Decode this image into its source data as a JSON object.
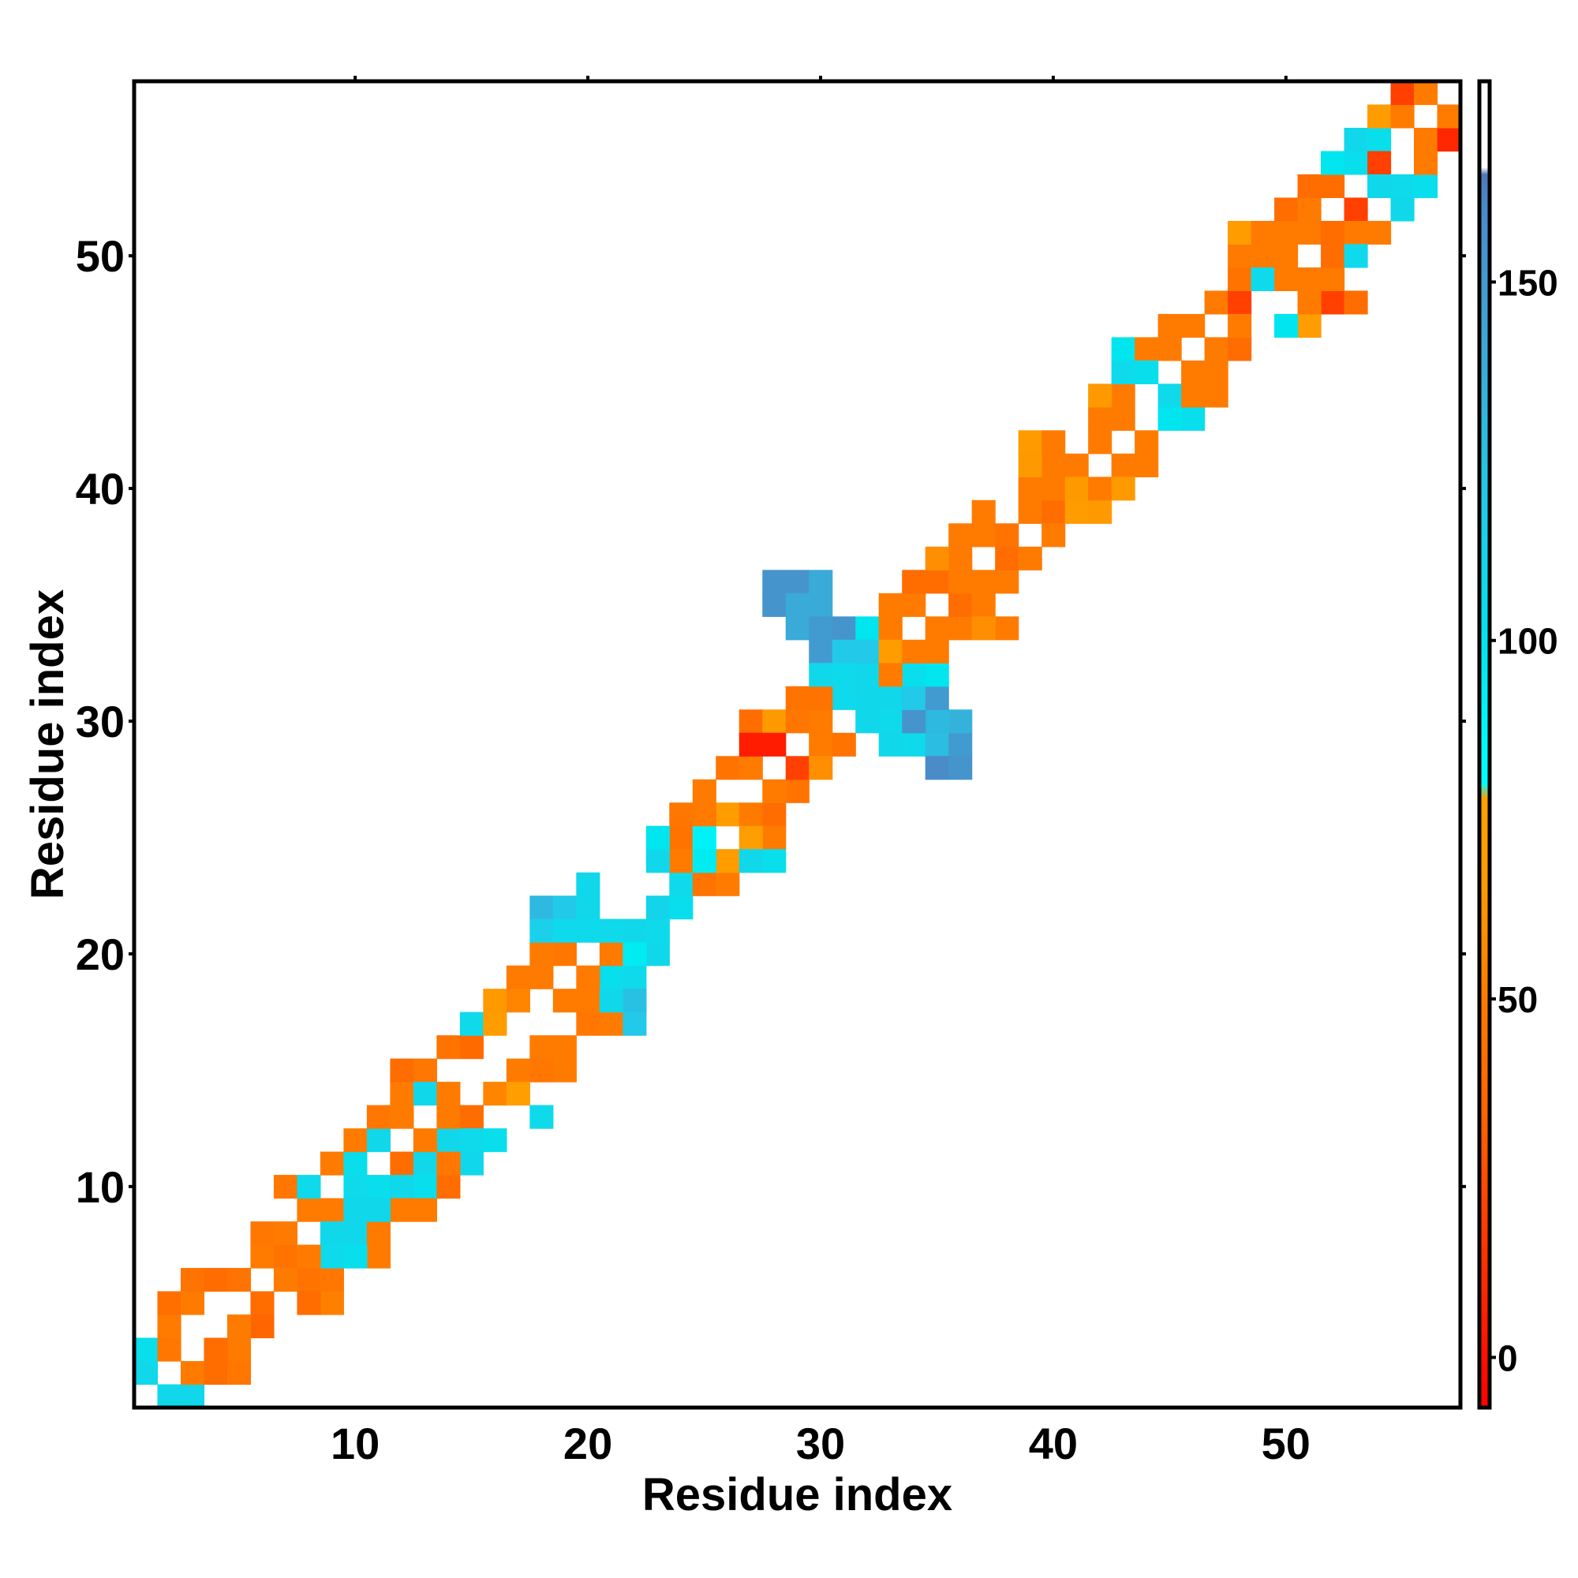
{
  "chart_data": {
    "type": "heatmap",
    "title": "",
    "xlabel": "Residue index",
    "ylabel": "Residue index",
    "xlim": [
      0.5,
      57.5
    ],
    "ylim": [
      0.5,
      57.5
    ],
    "x_ticks": [
      10,
      20,
      30,
      40,
      50
    ],
    "y_ticks": [
      10,
      20,
      30,
      40,
      50
    ],
    "x_tick_labels": [
      "10",
      "20",
      "30",
      "40",
      "50"
    ],
    "y_tick_labels": [
      "10",
      "20",
      "30",
      "40",
      "50"
    ],
    "grid": false,
    "colorbar": {
      "range": [
        -7,
        178
      ],
      "ticks": [
        0,
        50,
        100,
        150
      ],
      "tick_labels": [
        "0",
        "50",
        "100",
        "150"
      ],
      "stops": [
        {
          "value": -7,
          "color": "#ff0000"
        },
        {
          "value": 15,
          "color": "#ff3300"
        },
        {
          "value": 35,
          "color": "#ff6600"
        },
        {
          "value": 48,
          "color": "#ff7700"
        },
        {
          "value": 65,
          "color": "#ff9900"
        },
        {
          "value": 78,
          "color": "#ffa000"
        },
        {
          "value": 80,
          "color": "#00ffff"
        },
        {
          "value": 100,
          "color": "#00e5ee"
        },
        {
          "value": 120,
          "color": "#22c9e8"
        },
        {
          "value": 140,
          "color": "#3aaad8"
        },
        {
          "value": 160,
          "color": "#4a8cc8"
        },
        {
          "value": 165,
          "color": "#4f78b8"
        },
        {
          "value": 166,
          "color": "#ffffff"
        },
        {
          "value": 178,
          "color": "#ffffff"
        }
      ]
    },
    "cells": [
      [
        1,
        3,
        105
      ],
      [
        1,
        2,
        110
      ],
      [
        2,
        1,
        110
      ],
      [
        3,
        1,
        110
      ],
      [
        2,
        3,
        48
      ],
      [
        3,
        2,
        50
      ],
      [
        2,
        4,
        50
      ],
      [
        2,
        5,
        42
      ],
      [
        3,
        5,
        50
      ],
      [
        3,
        6,
        45
      ],
      [
        4,
        6,
        40
      ],
      [
        5,
        6,
        45
      ],
      [
        6,
        5,
        40
      ],
      [
        6,
        4,
        35
      ],
      [
        5,
        4,
        50
      ],
      [
        5,
        3,
        50
      ],
      [
        4,
        3,
        40
      ],
      [
        4,
        2,
        40
      ],
      [
        5,
        2,
        48
      ],
      [
        6,
        7,
        50
      ],
      [
        7,
        7,
        45
      ],
      [
        6,
        8,
        48
      ],
      [
        7,
        8,
        50
      ],
      [
        8,
        6,
        45
      ],
      [
        9,
        6,
        48
      ],
      [
        9,
        5,
        52
      ],
      [
        8,
        5,
        40
      ],
      [
        7,
        6,
        50
      ],
      [
        8,
        9,
        50
      ],
      [
        7,
        10,
        48
      ],
      [
        8,
        10,
        108
      ],
      [
        9,
        9,
        50
      ],
      [
        9,
        11,
        50
      ],
      [
        10,
        11,
        105
      ],
      [
        10,
        10,
        108
      ],
      [
        11,
        10,
        105
      ],
      [
        10,
        9,
        110
      ],
      [
        10,
        8,
        110
      ],
      [
        11,
        8,
        50
      ],
      [
        9,
        8,
        110
      ],
      [
        9,
        7,
        108
      ],
      [
        8,
        7,
        50
      ],
      [
        10,
        12,
        50
      ],
      [
        11,
        12,
        110
      ],
      [
        11,
        13,
        48
      ],
      [
        12,
        13,
        50
      ],
      [
        12,
        11,
        40
      ],
      [
        13,
        11,
        110
      ],
      [
        13,
        10,
        105
      ],
      [
        14,
        10,
        40
      ],
      [
        12,
        10,
        110
      ],
      [
        12,
        9,
        50
      ],
      [
        13,
        9,
        50
      ],
      [
        11,
        9,
        110
      ],
      [
        11,
        7,
        50
      ],
      [
        10,
        7,
        105
      ],
      [
        12,
        14,
        50
      ],
      [
        12,
        15,
        40
      ],
      [
        13,
        15,
        48
      ],
      [
        13,
        14,
        110
      ],
      [
        14,
        14,
        50
      ],
      [
        14,
        12,
        110
      ],
      [
        14,
        13,
        50
      ],
      [
        15,
        13,
        40
      ],
      [
        15,
        12,
        108
      ],
      [
        16,
        12,
        105
      ],
      [
        15,
        11,
        110
      ],
      [
        14,
        11,
        48
      ],
      [
        13,
        12,
        50
      ],
      [
        14,
        16,
        45
      ],
      [
        15,
        16,
        38
      ],
      [
        15,
        17,
        108
      ],
      [
        16,
        17,
        70
      ],
      [
        16,
        18,
        65
      ],
      [
        17,
        18,
        55
      ],
      [
        18,
        16,
        50
      ],
      [
        19,
        16,
        50
      ],
      [
        19,
        15,
        50
      ],
      [
        18,
        15,
        48
      ],
      [
        17,
        15,
        50
      ],
      [
        16,
        14,
        55
      ],
      [
        17,
        14,
        75
      ],
      [
        18,
        13,
        108
      ],
      [
        17,
        19,
        50
      ],
      [
        18,
        19,
        50
      ],
      [
        18,
        20,
        50
      ],
      [
        19,
        20,
        48
      ],
      [
        19,
        18,
        50
      ],
      [
        20,
        18,
        50
      ],
      [
        20,
        17,
        48
      ],
      [
        21,
        17,
        50
      ],
      [
        21,
        18,
        110
      ],
      [
        21,
        19,
        105
      ],
      [
        22,
        18,
        105
      ],
      [
        22,
        19,
        108
      ],
      [
        20,
        19,
        50
      ],
      [
        21,
        20,
        50
      ],
      [
        23,
        20,
        110
      ],
      [
        22,
        21,
        110
      ],
      [
        23,
        21,
        108
      ],
      [
        23,
        22,
        112
      ],
      [
        24,
        22,
        105
      ],
      [
        24,
        23,
        108
      ],
      [
        25,
        23,
        45
      ],
      [
        26,
        23,
        50
      ],
      [
        18,
        22,
        130
      ],
      [
        19,
        22,
        120
      ],
      [
        18,
        21,
        115
      ],
      [
        19,
        21,
        108
      ],
      [
        20,
        21,
        108
      ],
      [
        20,
        22,
        110
      ],
      [
        20,
        23,
        110
      ],
      [
        21,
        21,
        108
      ],
      [
        22,
        20,
        95
      ],
      [
        22,
        17,
        120
      ],
      [
        22,
        18,
        125
      ],
      [
        24,
        24,
        50
      ],
      [
        24,
        25,
        45
      ],
      [
        25,
        25,
        90
      ],
      [
        23,
        24,
        110
      ],
      [
        23,
        25,
        100
      ],
      [
        25,
        27,
        50
      ],
      [
        26,
        26,
        70
      ],
      [
        25,
        26,
        50
      ],
      [
        26,
        28,
        45
      ],
      [
        27,
        28,
        50
      ],
      [
        27,
        26,
        50
      ],
      [
        28,
        26,
        40
      ],
      [
        28,
        25,
        50
      ],
      [
        27,
        25,
        75
      ],
      [
        29,
        27,
        45
      ],
      [
        29,
        28,
        20
      ],
      [
        28,
        27,
        50
      ],
      [
        28,
        24,
        105
      ],
      [
        26,
        24,
        70
      ],
      [
        24,
        26,
        48
      ],
      [
        27,
        24,
        110
      ],
      [
        25,
        24,
        95
      ],
      [
        27,
        30,
        40
      ],
      [
        28,
        30,
        65
      ],
      [
        27,
        29,
        5
      ],
      [
        28,
        29,
        5
      ],
      [
        29,
        31,
        45
      ],
      [
        30,
        30,
        50
      ],
      [
        30,
        29,
        50
      ],
      [
        30,
        28,
        60
      ],
      [
        29,
        30,
        48
      ],
      [
        31,
        29,
        45
      ],
      [
        31,
        31,
        108
      ],
      [
        31,
        32,
        105
      ],
      [
        30,
        31,
        45
      ],
      [
        28,
        36,
        155
      ],
      [
        29,
        36,
        155
      ],
      [
        30,
        36,
        140
      ],
      [
        28,
        35,
        155
      ],
      [
        29,
        35,
        140
      ],
      [
        30,
        35,
        140
      ],
      [
        29,
        34,
        140
      ],
      [
        30,
        34,
        150
      ],
      [
        31,
        34,
        155
      ],
      [
        30,
        33,
        150
      ],
      [
        31,
        33,
        120
      ],
      [
        32,
        33,
        110
      ],
      [
        30,
        32,
        110
      ],
      [
        31,
        32,
        108
      ],
      [
        32,
        30,
        110
      ],
      [
        33,
        30,
        108
      ],
      [
        33,
        29,
        110
      ],
      [
        34,
        29,
        108
      ],
      [
        35,
        29,
        128
      ],
      [
        35,
        28,
        160
      ],
      [
        36,
        28,
        155
      ],
      [
        36,
        29,
        150
      ],
      [
        36,
        30,
        135
      ],
      [
        35,
        30,
        130
      ],
      [
        34,
        30,
        155
      ],
      [
        33,
        31,
        110
      ],
      [
        34,
        31,
        120
      ],
      [
        35,
        31,
        150
      ],
      [
        34,
        32,
        105
      ],
      [
        35,
        32,
        100
      ],
      [
        32,
        31,
        110
      ],
      [
        32,
        32,
        110
      ],
      [
        32,
        34,
        100
      ],
      [
        33,
        34,
        50
      ],
      [
        32,
        33,
        120
      ],
      [
        33,
        33,
        70
      ],
      [
        33,
        32,
        50
      ],
      [
        34,
        33,
        50
      ],
      [
        35,
        33,
        50
      ],
      [
        35,
        34,
        50
      ],
      [
        36,
        34,
        50
      ],
      [
        36,
        35,
        40
      ],
      [
        37,
        35,
        50
      ],
      [
        37,
        36,
        50
      ],
      [
        38,
        36,
        50
      ],
      [
        38,
        34,
        50
      ],
      [
        37,
        34,
        60
      ],
      [
        33,
        35,
        50
      ],
      [
        34,
        35,
        50
      ],
      [
        35,
        36,
        40
      ],
      [
        34,
        36,
        40
      ],
      [
        36,
        37,
        50
      ],
      [
        35,
        37,
        60
      ],
      [
        37,
        38,
        50
      ],
      [
        38,
        38,
        45
      ],
      [
        38,
        37,
        40
      ],
      [
        39,
        37,
        50
      ],
      [
        39,
        39,
        50
      ],
      [
        40,
        39,
        40
      ],
      [
        40,
        38,
        50
      ],
      [
        37,
        39,
        50
      ],
      [
        36,
        38,
        50
      ],
      [
        36,
        36,
        50
      ],
      [
        39,
        40,
        50
      ],
      [
        40,
        40,
        50
      ],
      [
        40,
        41,
        50
      ],
      [
        41,
        41,
        50
      ],
      [
        39,
        41,
        65
      ],
      [
        39,
        42,
        68
      ],
      [
        40,
        42,
        50
      ],
      [
        41,
        40,
        65
      ],
      [
        41,
        39,
        70
      ],
      [
        42,
        39,
        65
      ],
      [
        42,
        40,
        50
      ],
      [
        42,
        42,
        50
      ],
      [
        42,
        43,
        50
      ],
      [
        43,
        43,
        50
      ],
      [
        43,
        44,
        50
      ],
      [
        42,
        44,
        65
      ],
      [
        43,
        41,
        50
      ],
      [
        44,
        41,
        50
      ],
      [
        44,
        42,
        50
      ],
      [
        43,
        40,
        65
      ],
      [
        43,
        45,
        108
      ],
      [
        43,
        46,
        100
      ],
      [
        44,
        46,
        50
      ],
      [
        45,
        46,
        50
      ],
      [
        45,
        47,
        50
      ],
      [
        46,
        47,
        50
      ],
      [
        47,
        48,
        50
      ],
      [
        48,
        48,
        20
      ],
      [
        46,
        45,
        50
      ],
      [
        47,
        45,
        50
      ],
      [
        45,
        44,
        108
      ],
      [
        46,
        43,
        105
      ],
      [
        45,
        43,
        100
      ],
      [
        44,
        45,
        105
      ],
      [
        47,
        46,
        50
      ],
      [
        48,
        46,
        40
      ],
      [
        47,
        44,
        50
      ],
      [
        48,
        47,
        50
      ],
      [
        46,
        44,
        50
      ],
      [
        48,
        49,
        45
      ],
      [
        48,
        50,
        50
      ],
      [
        48,
        51,
        70
      ],
      [
        49,
        51,
        50
      ],
      [
        49,
        50,
        50
      ],
      [
        50,
        50,
        50
      ],
      [
        49,
        49,
        108
      ],
      [
        50,
        49,
        50
      ],
      [
        51,
        49,
        50
      ],
      [
        51,
        47,
        70
      ],
      [
        50,
        47,
        100
      ],
      [
        52,
        48,
        20
      ],
      [
        53,
        48,
        40
      ],
      [
        52,
        49,
        50
      ],
      [
        51,
        48,
        50
      ],
      [
        50,
        51,
        50
      ],
      [
        51,
        51,
        50
      ],
      [
        50,
        52,
        40
      ],
      [
        51,
        52,
        50
      ],
      [
        51,
        53,
        40
      ],
      [
        52,
        53,
        40
      ],
      [
        52,
        54,
        100
      ],
      [
        53,
        54,
        105
      ],
      [
        53,
        55,
        110
      ],
      [
        54,
        55,
        105
      ],
      [
        54,
        56,
        70
      ],
      [
        55,
        56,
        50
      ],
      [
        55,
        57,
        20
      ],
      [
        56,
        57,
        50
      ],
      [
        54,
        54,
        20
      ],
      [
        53,
        52,
        20
      ],
      [
        53,
        51,
        50
      ],
      [
        54,
        51,
        50
      ],
      [
        55,
        52,
        110
      ],
      [
        55,
        53,
        108
      ],
      [
        56,
        53,
        105
      ],
      [
        56,
        55,
        50
      ],
      [
        56,
        54,
        50
      ],
      [
        57,
        55,
        10
      ],
      [
        57,
        56,
        50
      ],
      [
        52,
        51,
        40
      ],
      [
        54,
        53,
        110
      ],
      [
        52,
        50,
        40
      ],
      [
        53,
        50,
        108
      ]
    ]
  }
}
